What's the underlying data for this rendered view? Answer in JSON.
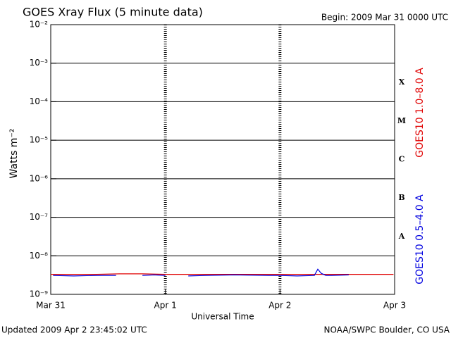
{
  "chart_data": {
    "type": "line",
    "title": "GOES Xray Flux (5 minute data)",
    "subtitle": "Begin:  2009 Mar 31 0000 UTC",
    "x_label": "Universal Time",
    "y_label": "Watts m⁻²",
    "footer_left": "Updated 2009 Apr  2 23:45:02 UTC",
    "footer_right": "NOAA/SWPC Boulder, CO USA",
    "log_scale": true,
    "grid": true,
    "ylim": [
      1e-09,
      0.01
    ],
    "yticks": [
      {
        "value": 1e-09,
        "label": "10⁻⁹"
      },
      {
        "value": 1e-08,
        "label": "10⁻⁸"
      },
      {
        "value": 1e-07,
        "label": "10⁻⁷"
      },
      {
        "value": 1e-06,
        "label": "10⁻⁶"
      },
      {
        "value": 1e-05,
        "label": "10⁻⁵"
      },
      {
        "value": 0.0001,
        "label": "10⁻⁴"
      },
      {
        "value": 0.001,
        "label": "10⁻³"
      },
      {
        "value": 0.01,
        "label": "10⁻²"
      }
    ],
    "xlim": [
      0,
      3
    ],
    "xticks": [
      {
        "value": 0,
        "label": "Mar 31"
      },
      {
        "value": 1,
        "label": "Apr 1"
      },
      {
        "value": 2,
        "label": "Apr 2"
      },
      {
        "value": 3,
        "label": "Apr 3"
      }
    ],
    "flare_classes": [
      "A",
      "B",
      "C",
      "M",
      "X"
    ],
    "series": [
      {
        "name": "GOES10 1.0–8.0 A",
        "color": "#e00000",
        "x": [
          0,
          0.2,
          0.4,
          0.6,
          0.8,
          1.0,
          1.1,
          1.2,
          1.4,
          1.6,
          1.8,
          2.0,
          2.2,
          2.4,
          2.6,
          2.8,
          2.99
        ],
        "values": [
          3.3e-09,
          3.3e-09,
          3.3e-09,
          3.4e-09,
          3.4e-09,
          3.3e-09,
          3.3e-09,
          3.3e-09,
          3.3e-09,
          3.3e-09,
          3.3e-09,
          3.3e-09,
          3.3e-09,
          3.3e-09,
          3.3e-09,
          3.3e-09,
          3.3e-09
        ]
      },
      {
        "name": "GOES10 0.5–4.0 A",
        "color": "#0000e0",
        "x": [
          0.02,
          0.2,
          0.4,
          0.57,
          0.6,
          0.8,
          0.9,
          1.0,
          1.05,
          1.2,
          1.35,
          1.6,
          1.9,
          2.0,
          2.15,
          2.3,
          2.33,
          2.36,
          2.4,
          2.45,
          2.6
        ],
        "values": [
          3.1e-09,
          3e-09,
          3.1e-09,
          3.1e-09,
          null,
          3.1e-09,
          3.2e-09,
          3.1e-09,
          null,
          3e-09,
          3.1e-09,
          3.2e-09,
          3.1e-09,
          3.1e-09,
          3e-09,
          3.1e-09,
          4.5e-09,
          3.5e-09,
          3.1e-09,
          3.1e-09,
          3.2e-09
        ]
      }
    ]
  }
}
